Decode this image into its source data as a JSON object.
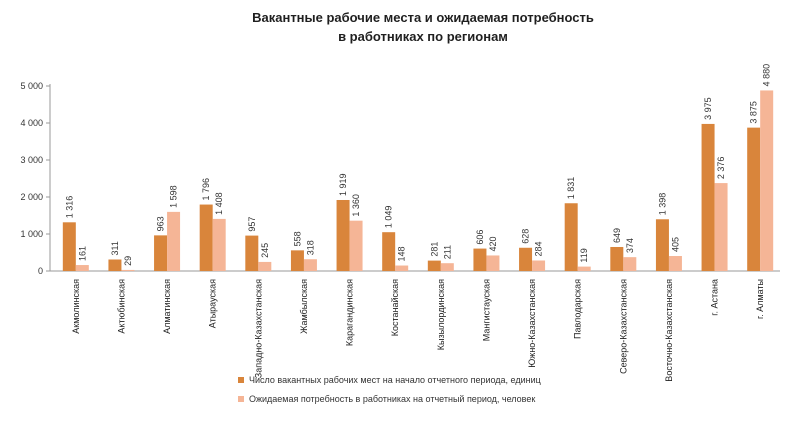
{
  "chart_data": {
    "type": "bar",
    "title_lines": [
      "Вакантные  рабочие  места  и ожидаемая  потребность",
      "в работниках  по регионам"
    ],
    "categories": [
      "Акмолинская",
      "Актюбинская",
      "Алматинская",
      "Атырауская",
      "Западно-Казахстанская",
      "Жамбылская",
      "Карагандинская",
      "Костанайская",
      "Кызылординская",
      "Мангистауская",
      "Южно-Казахстанская",
      "Павлодарская",
      "Северо-Казахстанская",
      "Восточно-Казахстанская",
      "г. Астана",
      "г. Алматы"
    ],
    "series": [
      {
        "name": "Число вакантных рабочих мест на начало отчетного периода, единиц",
        "color": "#d9853b",
        "values": [
          1316,
          311,
          963,
          1796,
          957,
          558,
          1919,
          1049,
          281,
          606,
          628,
          1831,
          649,
          1398,
          3975,
          3875
        ],
        "labels": [
          "1 316",
          "311",
          "963",
          "1 796",
          "957",
          "558",
          "1 919",
          "1 049",
          "281",
          "606",
          "628",
          "1 831",
          "649",
          "1 398",
          "3 975",
          "3 875"
        ]
      },
      {
        "name": "Ожидаемая потребность в работниках на отчетный период, человек",
        "color": "#f5b596",
        "values": [
          161,
          29,
          1598,
          1408,
          245,
          318,
          1360,
          148,
          211,
          420,
          284,
          119,
          374,
          405,
          2376,
          4880
        ],
        "labels": [
          "161",
          "29",
          "1 598",
          "1 408",
          "245",
          "318",
          "1 360",
          "148",
          "211",
          "420",
          "284",
          "119",
          "374",
          "405",
          "2 376",
          "4 880"
        ]
      }
    ],
    "ylim": [
      0,
      5000
    ],
    "yticks": [
      0,
      1000,
      2000,
      3000,
      4000,
      5000
    ],
    "ytick_labels": [
      "0",
      "1 000",
      "2 000",
      "3 000",
      "4 000",
      "5 000"
    ],
    "grid": false,
    "legend_position": "bottom"
  }
}
